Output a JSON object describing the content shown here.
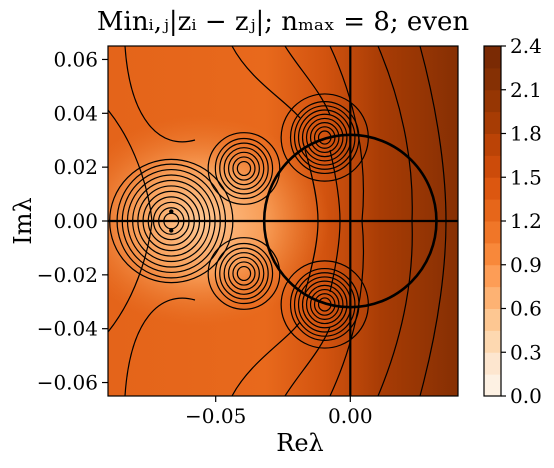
{
  "chart_data": {
    "type": "contour",
    "title": "Minᵢ,ⱼ|zᵢ − zⱼ|; nₘₐₓ = 8; even",
    "xlabel": "Reλ",
    "ylabel": "Imλ",
    "xlim": [
      -0.09,
      0.04
    ],
    "ylim": [
      -0.065,
      0.065
    ],
    "xticks": [
      -0.05,
      0.0
    ],
    "xtick_labels": [
      "−0.05",
      "0.00"
    ],
    "yticks": [
      0.06,
      0.04,
      0.02,
      0.0,
      -0.02,
      -0.04,
      -0.06
    ],
    "ytick_labels": [
      "0.06",
      "0.04",
      "0.02",
      "0.00",
      "−0.02",
      "−0.04",
      "−0.06"
    ],
    "colorbar": {
      "min": 0.0,
      "max": 2.4,
      "ticks": [
        2.4,
        2.1,
        1.8,
        1.5,
        1.2,
        0.9,
        0.6,
        0.3,
        0.0
      ],
      "tick_labels": [
        "2.4",
        "2.1",
        "1.8",
        "1.5",
        "1.2",
        "0.9",
        "0.6",
        "0.3",
        "0.0"
      ],
      "levels": 16,
      "colors": [
        "#fdf1e3",
        "#fde6cf",
        "#fdd8b0",
        "#fdc792",
        "#fdb273",
        "#fd9d56",
        "#f8883a",
        "#f07628",
        "#e6661a",
        "#dc5710",
        "#cc4b0a",
        "#bb4306",
        "#a73c04",
        "#963603",
        "#853004",
        "#7a2a04"
      ]
    },
    "contour_centers": [
      {
        "x": -0.0665,
        "y": 0.0,
        "rings": 10
      },
      {
        "x": -0.0395,
        "y": 0.0195,
        "rings": 6
      },
      {
        "x": -0.0395,
        "y": -0.0195,
        "rings": 6
      },
      {
        "x": -0.0095,
        "y": 0.031,
        "rings": 8
      },
      {
        "x": -0.0095,
        "y": -0.031,
        "rings": 8
      }
    ],
    "center_markers": [
      {
        "x": -0.0665,
        "y": 0.0035
      },
      {
        "x": -0.0665,
        "y": -0.0035
      }
    ],
    "reference_circle": {
      "cx": 0.0,
      "cy": 0.0,
      "r": 0.032
    },
    "reference_lines": {
      "x": 0.0,
      "y": 0.0
    },
    "grid": false
  }
}
